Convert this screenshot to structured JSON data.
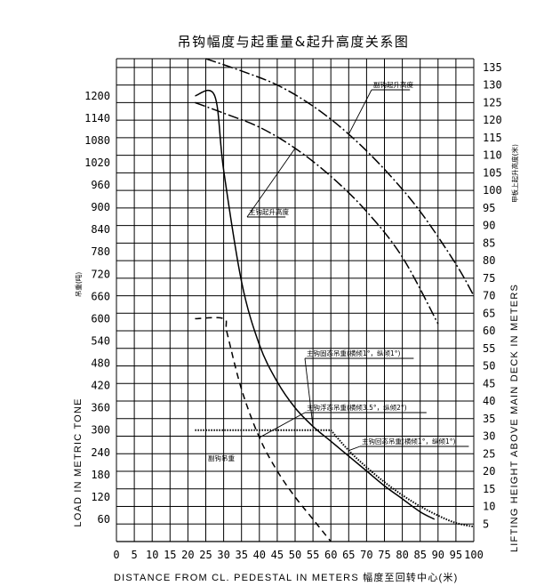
{
  "chart_data": {
    "type": "line",
    "title": "吊钩幅度与起重量&起升高度关系图",
    "xlabel": "DISTANCE  FROM  CL.  PEDESTAL  IN  METERS 幅度至回转中心(米)",
    "ylabel_left": "LOAD  IN  METRIC  TONE",
    "ylabel_left_cn": "吊重(吨)",
    "ylabel_right": "LIFTING  HEIGHT  ABOVE  MAIN  DECK  IN  METERS",
    "ylabel_right_cn": "甲板上起升高度(米)",
    "x_ticks": [
      "0",
      "5",
      "10",
      "15",
      "20",
      "25",
      "30",
      "35",
      "40",
      "45",
      "50",
      "55",
      "60",
      "65",
      "70",
      "75",
      "80",
      "85",
      "90",
      "95",
      "100"
    ],
    "xlim": [
      0,
      100
    ],
    "y_left_ticks": [
      "60",
      "120",
      "180",
      "240",
      "300",
      "360",
      "420",
      "480",
      "540",
      "600",
      "660",
      "720",
      "780",
      "840",
      "900",
      "960",
      "1020",
      "1080",
      "1140",
      "1200"
    ],
    "y_left_lim": [
      0,
      1300
    ],
    "y_right_ticks": [
      "5",
      "10",
      "15",
      "20",
      "25",
      "30",
      "35",
      "40",
      "45",
      "50",
      "55",
      "60",
      "65",
      "70",
      "75",
      "80",
      "85",
      "90",
      "95",
      "100",
      "105",
      "110",
      "115",
      "120",
      "125",
      "130",
      "135"
    ],
    "y_right_lim": [
      0,
      137.5
    ],
    "grid": true,
    "series": [
      {
        "name": "副钩起升高度",
        "axis": "right",
        "style": "dashdot",
        "x": [
          25,
          35,
          45,
          55,
          65,
          75,
          85,
          95,
          100
        ],
        "y": [
          137.5,
          134,
          130,
          124,
          116,
          106,
          94,
          79,
          70
        ]
      },
      {
        "name": "主钩起升高度",
        "axis": "right",
        "style": "dashdot",
        "x": [
          22,
          30,
          40,
          50,
          60,
          70,
          80,
          90
        ],
        "y": [
          125,
          122,
          118,
          112,
          104,
          94,
          81,
          62
        ]
      },
      {
        "name": "主钩固定吊重(横倾1°，纵倾1°)",
        "axis": "left",
        "style": "solid",
        "x": [
          22,
          27.5,
          30,
          35,
          40,
          45,
          50,
          55,
          60,
          65,
          70,
          75,
          80,
          85,
          89
        ],
        "y": [
          1200,
          1200,
          1000,
          700,
          530,
          430,
          360,
          310,
          270,
          230,
          190,
          150,
          115,
          80,
          60
        ]
      },
      {
        "name": "主钩浮态吊重(横倾3.5°，纵倾2°)",
        "axis": "left",
        "style": "dashed",
        "x": [
          22,
          30,
          31,
          35,
          40,
          45,
          50,
          55,
          60
        ],
        "y": [
          600,
          600,
          560,
          410,
          280,
          190,
          120,
          60,
          0
        ]
      },
      {
        "name": "副钩吊重",
        "axis": "left",
        "style": "dotted",
        "x": [
          22,
          60
        ],
        "y": [
          300,
          300
        ]
      },
      {
        "name": "主钩回态吊重(横倾1°，纵倾1°)",
        "axis": "left",
        "style": "dotted",
        "x": [
          60,
          65,
          70,
          75,
          80,
          85,
          90,
          95,
          100
        ],
        "y": [
          300,
          245,
          200,
          160,
          125,
          95,
          70,
          50,
          40
        ]
      }
    ],
    "annotations": [
      "副钩起升高度",
      "主钩起升高度",
      "主钩固态吊重(横倾1°，纵倾1°)",
      "主钩浮态吊重(横倾3.5°，纵倾2°)",
      "副钩吊重",
      "主钩回态吊重(横倾1°，纵倾1°)"
    ]
  }
}
